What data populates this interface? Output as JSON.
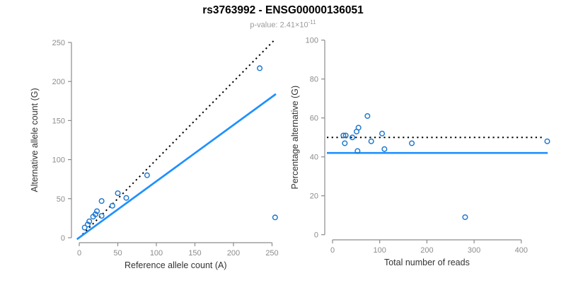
{
  "header": {
    "title": "rs3763992 - ENSG00000136051",
    "subtitle_prefix": "p-value: 2.41×10",
    "subtitle_exponent": "-11"
  },
  "colors": {
    "title": "#000000",
    "subtitle": "#9a9a9a",
    "axis_line": "#8c8c8c",
    "tick_text": "#8c8c8c",
    "axis_label_text": "#333333",
    "point_stroke": "#1874CD",
    "fit_line": "#1E90FF",
    "dotted_line": "#000000"
  },
  "chart_data": [
    {
      "type": "scatter",
      "name": "allele-counts-scatter",
      "xlabel": "Reference allele count (A)",
      "ylabel": "Alternative allele count (G)",
      "xlim": [
        0,
        258
      ],
      "ylim": [
        0,
        258
      ],
      "xticks": [
        0,
        50,
        100,
        150,
        200,
        250
      ],
      "yticks": [
        0,
        50,
        100,
        150,
        200,
        250
      ],
      "grid": false,
      "legend": "none",
      "points": [
        [
          7,
          13
        ],
        [
          11,
          17
        ],
        [
          13,
          21
        ],
        [
          18,
          27
        ],
        [
          21,
          30
        ],
        [
          23,
          34
        ],
        [
          29,
          28
        ],
        [
          29,
          47
        ],
        [
          43,
          41
        ],
        [
          50,
          57
        ],
        [
          61,
          51
        ],
        [
          88,
          80
        ],
        [
          234,
          217
        ],
        [
          254,
          26
        ]
      ],
      "lines": [
        {
          "name": "identity-line",
          "style": "dotted",
          "color_key": "dotted_line",
          "from": [
            0,
            0
          ],
          "to": [
            253,
            253
          ]
        },
        {
          "name": "fit-line",
          "style": "solid",
          "color_key": "fit_line",
          "from": [
            -3,
            -2
          ],
          "to": [
            255,
            184
          ]
        }
      ]
    },
    {
      "type": "scatter",
      "name": "percentage-vs-reads-scatter",
      "xlabel": "Total number of reads",
      "ylabel": "Percentage alternative (G)",
      "xlim": [
        0,
        460
      ],
      "ylim": [
        0,
        100
      ],
      "xticks": [
        0,
        100,
        200,
        300,
        400
      ],
      "yticks": [
        0,
        20,
        40,
        60,
        80,
        100
      ],
      "grid": false,
      "legend": "none",
      "points": [
        [
          23,
          51
        ],
        [
          26,
          47
        ],
        [
          28,
          51
        ],
        [
          42,
          50
        ],
        [
          51,
          53
        ],
        [
          53,
          43
        ],
        [
          55,
          55
        ],
        [
          74,
          61
        ],
        [
          82,
          48
        ],
        [
          105,
          52
        ],
        [
          110,
          44
        ],
        [
          168,
          47
        ],
        [
          281,
          9
        ],
        [
          455,
          48
        ]
      ],
      "lines": [
        {
          "name": "expected-50pct-line",
          "style": "dotted",
          "color_key": "dotted_line",
          "from": [
            -12,
            50
          ],
          "to": [
            448,
            50
          ]
        },
        {
          "name": "fit-line",
          "style": "solid",
          "color_key": "fit_line",
          "from": [
            -12,
            42
          ],
          "to": [
            456,
            42
          ]
        }
      ]
    }
  ]
}
